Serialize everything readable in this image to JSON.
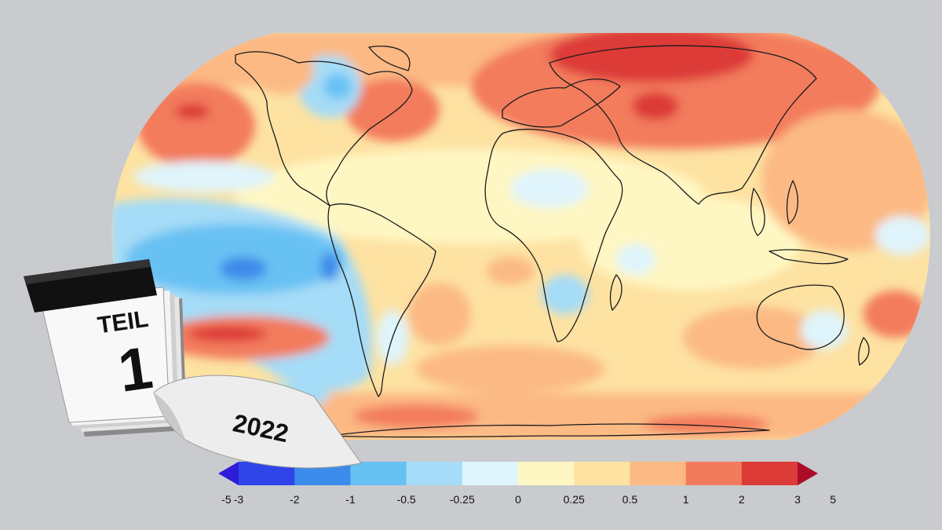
{
  "map": {
    "type": "temperature-anomaly-map",
    "projection": "robinson",
    "palette": [
      "#2d1bd8",
      "#2f45ea",
      "#3d8bea",
      "#68c1f3",
      "#a5dcf7",
      "#dff4fb",
      "#fff7c3",
      "#fde2a2",
      "#fcb984",
      "#f37b5d",
      "#dd3b38",
      "#ab0d26"
    ]
  },
  "colorbar": {
    "ticks": [
      "-5",
      "-3",
      "-2",
      "-1",
      "-0.5",
      "-0.25",
      "0",
      "0.25",
      "0.5",
      "1",
      "2",
      "3",
      "5"
    ],
    "colors": [
      "#2d1bd8",
      "#2f45ea",
      "#3d8bea",
      "#68c1f3",
      "#a5dcf7",
      "#dff4fb",
      "#fff7c3",
      "#fde2a2",
      "#fcb984",
      "#f37b5d",
      "#dd3b38",
      "#ab0d26"
    ]
  },
  "calendar": {
    "part_label": "TEIL",
    "part_number": "1",
    "year": "2022"
  }
}
